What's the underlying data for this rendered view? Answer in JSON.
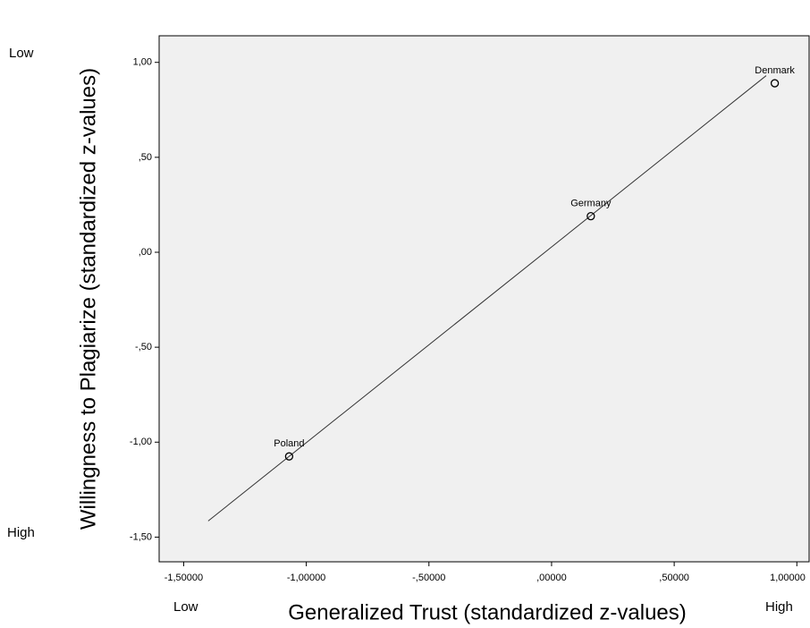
{
  "chart_data": {
    "type": "scatter",
    "x_label": "Generalized Trust (standardized z-values)",
    "y_label": "Willingness to Plagiarize (standardized z-values)",
    "x_annotations": [
      "Low",
      "High"
    ],
    "y_annotations": [
      "Low",
      "High"
    ],
    "labels": [
      "Poland",
      "Germany",
      "Denmark"
    ],
    "x": [
      -1.07,
      0.16,
      0.91
    ],
    "values": [
      -1.075,
      0.19,
      0.89
    ],
    "fit_line": {
      "x": [
        -1.4,
        0.875
      ],
      "y": [
        -1.415,
        0.93
      ]
    },
    "xlim": [
      -1.6,
      1.05
    ],
    "ylim": [
      -1.63,
      1.14
    ],
    "xticks": [
      {
        "value": -1.5,
        "label": "-1,50000"
      },
      {
        "value": -1.0,
        "label": "-1,00000"
      },
      {
        "value": -0.5,
        "label": "-,50000"
      },
      {
        "value": 0,
        "label": ",00000"
      },
      {
        "value": 0.5,
        "label": ",50000"
      },
      {
        "value": 1.0,
        "label": "1,00000"
      }
    ],
    "yticks": [
      {
        "value": 1.0,
        "label": "1,00"
      },
      {
        "value": 0.5,
        "label": ",50"
      },
      {
        "value": 0,
        "label": ",00"
      },
      {
        "value": -0.5,
        "label": "-,50"
      },
      {
        "value": -1.0,
        "label": "-1,00"
      },
      {
        "value": -1.5,
        "label": "-1,50"
      }
    ]
  }
}
